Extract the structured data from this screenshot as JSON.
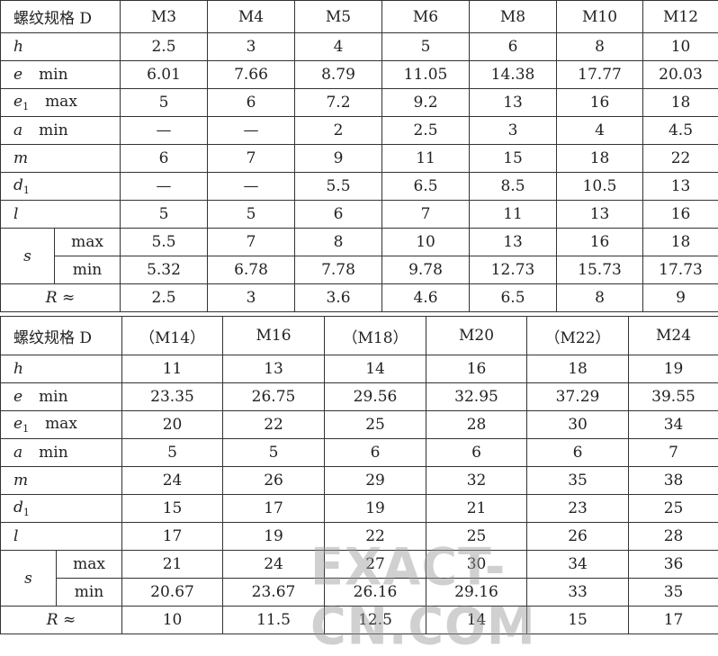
{
  "header_label": "螺纹规格 D",
  "row_labels": {
    "h": "h",
    "e": "e",
    "e_q": "min",
    "e1": "e",
    "e1_sub": "1",
    "e1_q": "max",
    "a": "a",
    "a_q": "min",
    "m": "m",
    "d1": "d",
    "d1_sub": "1",
    "l": "l",
    "s": "s",
    "s_max": "max",
    "s_min": "min",
    "R": "R ≈"
  },
  "table1": {
    "sizes": [
      "M3",
      "M4",
      "M5",
      "M6",
      "M8",
      "M10",
      "M12"
    ],
    "h": [
      "2.5",
      "3",
      "4",
      "5",
      "6",
      "8",
      "10"
    ],
    "e_min": [
      "6.01",
      "7.66",
      "8.79",
      "11.05",
      "14.38",
      "17.77",
      "20.03"
    ],
    "e1_max": [
      "5",
      "6",
      "7.2",
      "9.2",
      "13",
      "16",
      "18"
    ],
    "a_min": [
      "—",
      "—",
      "2",
      "2.5",
      "3",
      "4",
      "4.5"
    ],
    "m": [
      "6",
      "7",
      "9",
      "11",
      "15",
      "18",
      "22"
    ],
    "d1": [
      "—",
      "—",
      "5.5",
      "6.5",
      "8.5",
      "10.5",
      "13"
    ],
    "l": [
      "5",
      "5",
      "6",
      "7",
      "11",
      "13",
      "16"
    ],
    "s_max": [
      "5.5",
      "7",
      "8",
      "10",
      "13",
      "16",
      "18"
    ],
    "s_min": [
      "5.32",
      "6.78",
      "7.78",
      "9.78",
      "12.73",
      "15.73",
      "17.73"
    ],
    "R": [
      "2.5",
      "3",
      "3.6",
      "4.6",
      "6.5",
      "8",
      "9"
    ]
  },
  "table2": {
    "sizes": [
      "（M14）",
      "M16",
      "（M18）",
      "M20",
      "（M22）",
      "M24"
    ],
    "h": [
      "11",
      "13",
      "14",
      "16",
      "18",
      "19"
    ],
    "e_min": [
      "23.35",
      "26.75",
      "29.56",
      "32.95",
      "37.29",
      "39.55"
    ],
    "e1_max": [
      "20",
      "22",
      "25",
      "28",
      "30",
      "34"
    ],
    "a_min": [
      "5",
      "5",
      "6",
      "6",
      "6",
      "7"
    ],
    "m": [
      "24",
      "26",
      "29",
      "32",
      "35",
      "38"
    ],
    "d1": [
      "15",
      "17",
      "19",
      "21",
      "23",
      "25"
    ],
    "l": [
      "17",
      "19",
      "22",
      "25",
      "26",
      "28"
    ],
    "s_max": [
      "21",
      "24",
      "27",
      "30",
      "34",
      "36"
    ],
    "s_min": [
      "20.67",
      "23.67",
      "26.16",
      "29.16",
      "33",
      "35"
    ],
    "R": [
      "10",
      "11.5",
      "12.5",
      "14",
      "15",
      "17"
    ]
  },
  "watermark": "EXACT-CN.COM"
}
